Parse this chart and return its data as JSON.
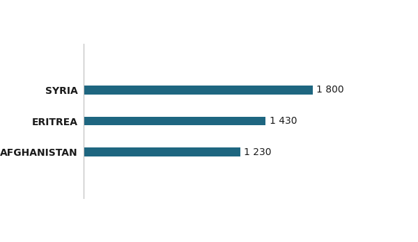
{
  "categories": [
    "AFGHANISTAN",
    "ERITREA",
    "SYRIA"
  ],
  "values": [
    1230,
    1430,
    1800
  ],
  "labels": [
    "1 230",
    "1 430",
    "1 800"
  ],
  "bar_color": "#1e6680",
  "background_color": "#ffffff",
  "text_color": "#1a1a1a",
  "xlim": [
    0,
    2200
  ],
  "bar_height": 0.28,
  "label_fontsize": 10,
  "category_fontsize": 10
}
